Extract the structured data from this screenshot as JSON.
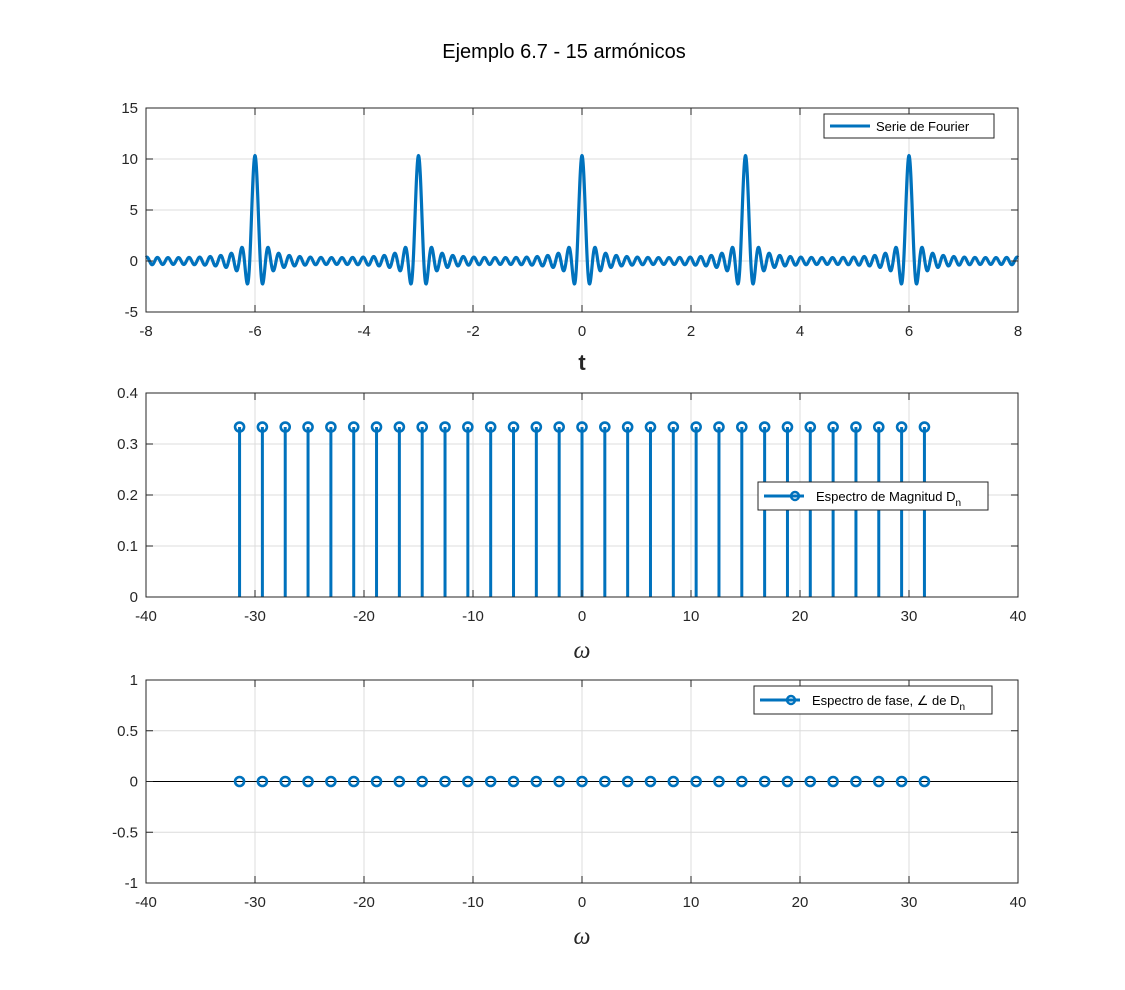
{
  "figure_title": "Ejemplo 6.7 - 15 armónicos",
  "colors": {
    "series": "#0072BD",
    "axis": "#262626",
    "grid": "#dcdcdc",
    "zero_line": "#000000"
  },
  "chart_data": [
    {
      "type": "line",
      "name": "time-signal",
      "title": "Ejemplo 6.7 - 15 armónicos",
      "xlabel": "t",
      "ylabel": "",
      "xlim": [
        -8,
        8
      ],
      "ylim": [
        -5,
        15
      ],
      "xticks": [
        -8,
        -6,
        -4,
        -2,
        0,
        2,
        4,
        6,
        8
      ],
      "xtick_labels": [
        "-8",
        "-6",
        "-4",
        "-2",
        "0",
        "2",
        "4",
        "6",
        "8"
      ],
      "yticks": [
        -5,
        0,
        5,
        10,
        15
      ],
      "ytick_labels": [
        "-5",
        "0",
        "5",
        "10",
        "15"
      ],
      "grid": true,
      "legend": {
        "label": "Serie de Fourier",
        "position": "top-right"
      },
      "series": [
        {
          "name": "Serie de Fourier",
          "function": "fourier_series",
          "period": 3,
          "harmonics": 15,
          "coefficient": 0.3333,
          "t_range": [
            -8,
            8
          ],
          "peak_value": 10.33
        }
      ]
    },
    {
      "type": "stem",
      "name": "magnitude-spectrum",
      "xlabel": "ω",
      "ylabel": "",
      "xlim": [
        -40,
        40
      ],
      "ylim": [
        0,
        0.4
      ],
      "xticks": [
        -40,
        -30,
        -20,
        -10,
        0,
        10,
        20,
        30,
        40
      ],
      "xtick_labels": [
        "-40",
        "-30",
        "-20",
        "-10",
        "0",
        "10",
        "20",
        "30",
        "40"
      ],
      "yticks": [
        0,
        0.1,
        0.2,
        0.3,
        0.4
      ],
      "ytick_labels": [
        "0",
        "0.1",
        "0.2",
        "0.3",
        "0.4"
      ],
      "grid": true,
      "legend": {
        "label": "Espectro de Magnitud D",
        "subscript": "n",
        "position": "right"
      },
      "series": [
        {
          "name": "Espectro de Magnitud Dn",
          "x": [
            -31.416,
            -29.322,
            -27.227,
            -25.133,
            -23.038,
            -20.944,
            -18.85,
            -16.755,
            -14.661,
            -12.566,
            -10.472,
            -8.378,
            -6.283,
            -4.189,
            -2.094,
            0,
            2.094,
            4.189,
            6.283,
            8.378,
            10.472,
            12.566,
            14.661,
            16.755,
            18.85,
            20.944,
            23.038,
            25.133,
            27.227,
            29.322,
            31.416
          ],
          "y": [
            0.3333,
            0.3333,
            0.3333,
            0.3333,
            0.3333,
            0.3333,
            0.3333,
            0.3333,
            0.3333,
            0.3333,
            0.3333,
            0.3333,
            0.3333,
            0.3333,
            0.3333,
            0.3333,
            0.3333,
            0.3333,
            0.3333,
            0.3333,
            0.3333,
            0.3333,
            0.3333,
            0.3333,
            0.3333,
            0.3333,
            0.3333,
            0.3333,
            0.3333,
            0.3333,
            0.3333
          ]
        }
      ]
    },
    {
      "type": "stem",
      "name": "phase-spectrum",
      "xlabel": "ω",
      "ylabel": "",
      "xlim": [
        -40,
        40
      ],
      "ylim": [
        -1,
        1
      ],
      "xticks": [
        -40,
        -30,
        -20,
        -10,
        0,
        10,
        20,
        30,
        40
      ],
      "xtick_labels": [
        "-40",
        "-30",
        "-20",
        "-10",
        "0",
        "10",
        "20",
        "30",
        "40"
      ],
      "yticks": [
        -1,
        -0.5,
        0,
        0.5,
        1
      ],
      "ytick_labels": [
        "-1",
        "-0.5",
        "0",
        "0.5",
        "1"
      ],
      "grid": true,
      "zero_line": true,
      "legend": {
        "label": "Espectro de fase, ∠ de D",
        "subscript": "n",
        "position": "top-right"
      },
      "series": [
        {
          "name": "Espectro de fase, ∠ de Dn",
          "x": [
            -31.416,
            -29.322,
            -27.227,
            -25.133,
            -23.038,
            -20.944,
            -18.85,
            -16.755,
            -14.661,
            -12.566,
            -10.472,
            -8.378,
            -6.283,
            -4.189,
            -2.094,
            0,
            2.094,
            4.189,
            6.283,
            8.378,
            10.472,
            12.566,
            14.661,
            16.755,
            18.85,
            20.944,
            23.038,
            25.133,
            27.227,
            29.322,
            31.416
          ],
          "y": [
            0,
            0,
            0,
            0,
            0,
            0,
            0,
            0,
            0,
            0,
            0,
            0,
            0,
            0,
            0,
            0,
            0,
            0,
            0,
            0,
            0,
            0,
            0,
            0,
            0,
            0,
            0,
            0,
            0,
            0,
            0
          ]
        }
      ]
    }
  ]
}
